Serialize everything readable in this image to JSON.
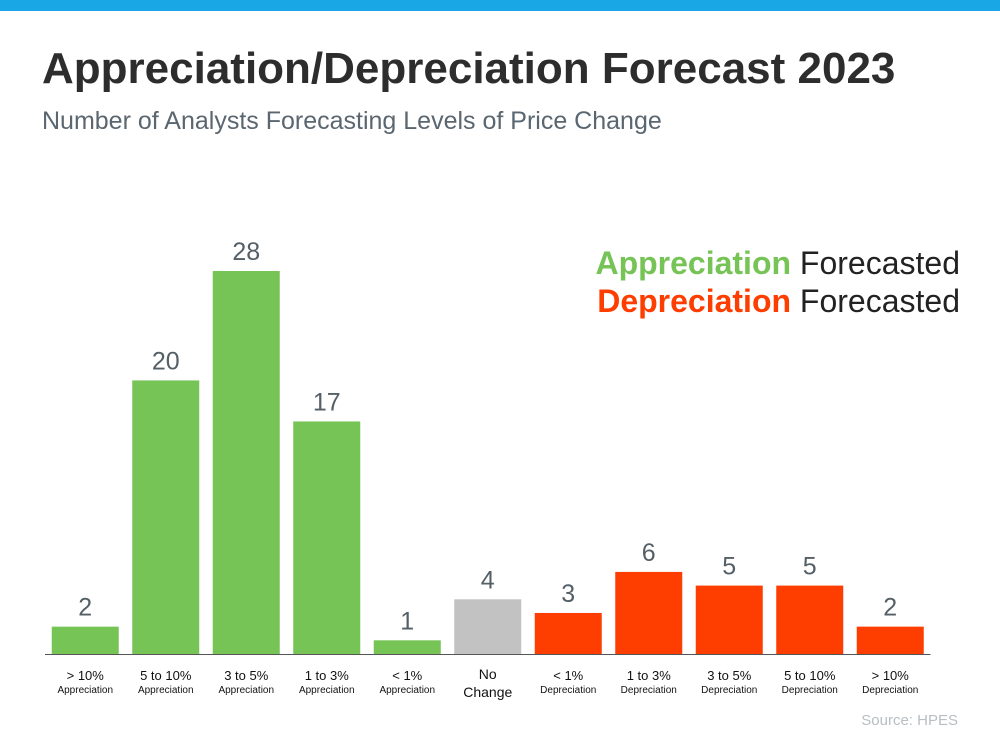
{
  "title": "Appreciation/Depreciation Forecast 2023",
  "subtitle": "Number of Analysts Forecasting Levels of Price Change",
  "source": "Source: HPES",
  "legend": {
    "appreciation": {
      "key": "Appreciation",
      "rest": " Forecasted",
      "color": "#76c356"
    },
    "depreciation": {
      "key": "Depreciation",
      "rest": " Forecasted",
      "color": "#fe3d00"
    }
  },
  "colors": {
    "appreciation": "#76c356",
    "neutral": "#c2c2c2",
    "depreciation": "#fe3d00",
    "axis": "#555555"
  },
  "chart_data": {
    "type": "bar",
    "title": "Appreciation/Depreciation Forecast 2023",
    "subtitle": "Number of Analysts Forecasting Levels of Price Change",
    "categories": [
      [
        "> 10%",
        "Appreciation"
      ],
      [
        "5 to 10%",
        "Appreciation"
      ],
      [
        "3 to 5%",
        "Appreciation"
      ],
      [
        "1 to 3%",
        "Appreciation"
      ],
      [
        "< 1%",
        "Appreciation"
      ],
      [
        "No",
        "Change"
      ],
      [
        "< 1%",
        "Depreciation"
      ],
      [
        "1 to 3%",
        "Depreciation"
      ],
      [
        "3 to 5%",
        "Depreciation"
      ],
      [
        "5  to 10%",
        "Depreciation"
      ],
      [
        "> 10%",
        "Depreciation"
      ]
    ],
    "values": [
      2,
      20,
      28,
      17,
      1,
      4,
      3,
      6,
      5,
      5,
      2
    ],
    "groups": [
      "appreciation",
      "appreciation",
      "appreciation",
      "appreciation",
      "appreciation",
      "neutral",
      "depreciation",
      "depreciation",
      "depreciation",
      "depreciation",
      "depreciation"
    ],
    "xlabel": "",
    "ylabel": "",
    "ylim": [
      0,
      28
    ],
    "grid": false,
    "data_labels": true,
    "legend_position": "top-right"
  }
}
